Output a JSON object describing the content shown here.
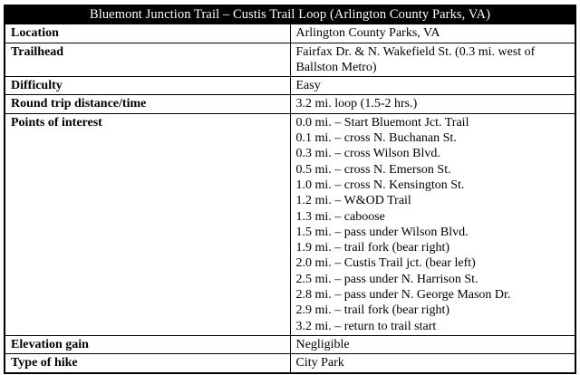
{
  "title": "Bluemont Junction Trail – Custis Trail Loop (Arlington County Parks, VA)",
  "rows": [
    {
      "label": "Location",
      "value": "Arlington County Parks, VA"
    },
    {
      "label": "Trailhead",
      "value": "Fairfax Dr. & N. Wakefield St. (0.3 mi. west of Ballston Metro)"
    },
    {
      "label": "Difficulty",
      "value": "Easy"
    },
    {
      "label": "Round trip distance/time",
      "value": "3.2 mi. loop (1.5-2 hrs.)"
    },
    {
      "label": "Points of interest",
      "lines": [
        "0.0 mi. – Start Bluemont Jct. Trail",
        "0.1 mi. – cross N. Buchanan St.",
        "0.3 mi. – cross Wilson Blvd.",
        "0.5 mi. – cross N. Emerson St.",
        "1.0 mi. – cross N. Kensington St.",
        "1.2 mi. – W&OD Trail",
        "1.3 mi. – caboose",
        "1.5 mi. – pass under Wilson Blvd.",
        "1.9 mi. – trail fork (bear right)",
        "2.0 mi. – Custis Trail jct. (bear left)",
        "2.5 mi. – pass under N. Harrison St.",
        "2.8 mi. – pass under N. George Mason Dr.",
        "2.9 mi. – trail fork (bear right)",
        "3.2 mi. – return to trail start"
      ]
    },
    {
      "label": "Elevation gain",
      "value": "Negligible"
    },
    {
      "label": "Type of hike",
      "value": "City Park"
    }
  ],
  "colors": {
    "header_bg": "#000000",
    "header_text": "#ffffff",
    "border": "#000000",
    "background": "#ffffff"
  }
}
